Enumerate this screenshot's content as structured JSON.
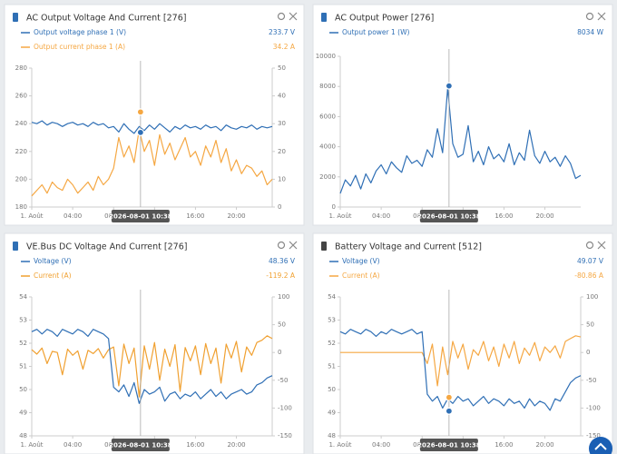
{
  "chart_data": [
    {
      "type": "line",
      "title": "AC Output Voltage And Current [276]",
      "x": [
        0,
        0.5,
        1,
        1.5,
        2,
        2.5,
        3,
        3.5,
        4,
        4.5,
        5,
        5.5,
        6,
        6.5,
        7,
        7.5,
        8,
        8.5,
        9,
        9.5,
        10,
        10.5,
        11,
        11.5,
        12,
        12.5,
        13,
        13.5,
        14,
        14.5,
        15,
        15.5,
        16,
        16.5,
        17,
        17.5,
        18,
        18.5,
        19,
        19.5,
        20,
        20.5,
        21,
        21.5,
        22,
        22.5,
        23,
        23.5
      ],
      "xlim": [
        0,
        23.5
      ],
      "xticks": [
        {
          "value": 0,
          "label": "1. Août"
        },
        {
          "value": 4,
          "label": "04:00"
        },
        {
          "value": 8,
          "label": "08:00"
        },
        {
          "value": 12,
          "label": "12:00"
        },
        {
          "value": 16,
          "label": "16:00"
        },
        {
          "value": 20,
          "label": "20:00"
        }
      ],
      "ylim": [
        180,
        280
      ],
      "yticks": [
        180,
        200,
        220,
        240,
        260,
        280
      ],
      "y2lim": [
        0,
        50
      ],
      "y2ticks": [
        0,
        10,
        20,
        30,
        40,
        50
      ],
      "hover": {
        "x": 10.63,
        "label": "2026-08-01 10:38"
      },
      "markers": true,
      "series": [
        {
          "name": "Output voltage phase 1 (V)",
          "color": "#2f6fb5",
          "hover_value": 233.7,
          "hover_label": "233.7 V",
          "values": [
            241,
            240,
            242,
            239,
            241,
            240,
            238,
            240,
            241,
            239,
            240,
            238,
            241,
            239,
            240,
            237,
            238,
            234,
            240,
            236,
            233,
            238,
            235,
            239,
            236,
            240,
            237,
            234,
            238,
            236,
            239,
            237,
            238,
            236,
            239,
            237,
            238,
            235,
            239,
            237,
            236,
            238,
            237,
            239,
            236,
            238,
            237,
            238
          ]
        },
        {
          "name": "Output current phase 1 (A)",
          "color": "#f5a742",
          "axis": "y2",
          "hover_value": 34.2,
          "hover_label": "34.2 A",
          "values": [
            4,
            6,
            8,
            5,
            9,
            7,
            6,
            10,
            8,
            5,
            7,
            9,
            6,
            11,
            8,
            10,
            14,
            25,
            18,
            22,
            16,
            28,
            20,
            24,
            15,
            26,
            19,
            23,
            17,
            21,
            25,
            18,
            20,
            15,
            22,
            18,
            24,
            16,
            21,
            13,
            17,
            12,
            15,
            14,
            11,
            13,
            8,
            10
          ]
        }
      ]
    },
    {
      "type": "line",
      "title": "AC Output Power [276]",
      "x": [
        0,
        0.5,
        1,
        1.5,
        2,
        2.5,
        3,
        3.5,
        4,
        4.5,
        5,
        5.5,
        6,
        6.5,
        7,
        7.5,
        8,
        8.5,
        9,
        9.5,
        10,
        10.5,
        11,
        11.5,
        12,
        12.5,
        13,
        13.5,
        14,
        14.5,
        15,
        15.5,
        16,
        16.5,
        17,
        17.5,
        18,
        18.5,
        19,
        19.5,
        20,
        20.5,
        21,
        21.5,
        22,
        22.5,
        23,
        23.5
      ],
      "xlim": [
        0,
        23.5
      ],
      "xticks": [
        {
          "value": 0,
          "label": "1. Août"
        },
        {
          "value": 4,
          "label": "04:00"
        },
        {
          "value": 8,
          "label": "08:00"
        },
        {
          "value": 12,
          "label": "12:00"
        },
        {
          "value": 16,
          "label": "16:00"
        },
        {
          "value": 20,
          "label": "20:00"
        }
      ],
      "ylim": [
        0,
        10000
      ],
      "yticks": [
        0,
        2000,
        4000,
        6000,
        8000,
        10000
      ],
      "hover": {
        "x": 10.63,
        "label": "2026-08-01 10:38"
      },
      "markers": true,
      "series": [
        {
          "name": "Output power 1 (W)",
          "color": "#2f6fb5",
          "hover_value": 8034,
          "hover_label": "8034 W",
          "values": [
            900,
            1800,
            1400,
            2100,
            1200,
            2200,
            1600,
            2400,
            2800,
            2200,
            3000,
            2600,
            2300,
            3400,
            2900,
            3100,
            2700,
            3800,
            3300,
            5200,
            3600,
            7900,
            4200,
            3300,
            3500,
            5400,
            3000,
            3700,
            2800,
            4000,
            3200,
            3500,
            3000,
            4200,
            2800,
            3600,
            3100,
            5100,
            3400,
            2900,
            3700,
            3000,
            3300,
            2700,
            3400,
            2900,
            1900,
            2100
          ]
        }
      ]
    },
    {
      "type": "line",
      "title": "VE.Bus DC Voltage And Current [276]",
      "x": [
        0,
        0.5,
        1,
        1.5,
        2,
        2.5,
        3,
        3.5,
        4,
        4.5,
        5,
        5.5,
        6,
        6.5,
        7,
        7.5,
        8,
        8.5,
        9,
        9.5,
        10,
        10.5,
        11,
        11.5,
        12,
        12.5,
        13,
        13.5,
        14,
        14.5,
        15,
        15.5,
        16,
        16.5,
        17,
        17.5,
        18,
        18.5,
        19,
        19.5,
        20,
        20.5,
        21,
        21.5,
        22,
        22.5,
        23,
        23.5
      ],
      "xlim": [
        0,
        23.5
      ],
      "xticks": [
        {
          "value": 0,
          "label": "1. Août"
        },
        {
          "value": 4,
          "label": "04:00"
        },
        {
          "value": 8,
          "label": "08:00"
        },
        {
          "value": 12,
          "label": "12:00"
        },
        {
          "value": 16,
          "label": "16:00"
        },
        {
          "value": 20,
          "label": "20:00"
        }
      ],
      "ylim": [
        48,
        54
      ],
      "yticks": [
        48,
        49,
        50,
        51,
        52,
        53,
        54
      ],
      "y2lim": [
        -150,
        100
      ],
      "y2ticks": [
        -150,
        -100,
        -50,
        0,
        50,
        100
      ],
      "hover": {
        "x": 10.63,
        "label": "2026-08-01 10:38"
      },
      "markers": false,
      "series": [
        {
          "name": "Voltage (V)",
          "color": "#2f6fb5",
          "hover_value": 48.36,
          "hover_label": "48.36 V",
          "values": [
            52.5,
            52.6,
            52.4,
            52.6,
            52.5,
            52.3,
            52.6,
            52.5,
            52.4,
            52.6,
            52.5,
            52.3,
            52.6,
            52.5,
            52.4,
            52.2,
            50.1,
            49.9,
            50.2,
            49.7,
            50.3,
            49.4,
            50.0,
            49.8,
            49.9,
            50.1,
            49.5,
            49.8,
            49.9,
            49.6,
            49.8,
            49.7,
            49.9,
            49.6,
            49.8,
            50.0,
            49.7,
            49.9,
            49.6,
            49.8,
            49.9,
            50.0,
            49.8,
            49.9,
            50.2,
            50.3,
            50.5,
            50.6
          ]
        },
        {
          "name": "Current (A)",
          "color": "#f0a030",
          "axis": "y2",
          "hover_value": -119.2,
          "hover_label": "-119.2 A",
          "values": [
            5,
            -3,
            8,
            -20,
            2,
            0,
            -40,
            6,
            -5,
            3,
            -30,
            4,
            -2,
            7,
            -10,
            5,
            10,
            -60,
            15,
            -20,
            8,
            -80,
            12,
            -30,
            18,
            -50,
            6,
            -25,
            14,
            -70,
            9,
            -15,
            12,
            -40,
            16,
            -20,
            8,
            -55,
            15,
            -10,
            20,
            -35,
            10,
            -5,
            18,
            22,
            30,
            25
          ]
        }
      ]
    },
    {
      "type": "line",
      "title": "Battery Voltage and Current [512]",
      "x": [
        0,
        0.5,
        1,
        1.5,
        2,
        2.5,
        3,
        3.5,
        4,
        4.5,
        5,
        5.5,
        6,
        6.5,
        7,
        7.5,
        8,
        8.5,
        9,
        9.5,
        10,
        10.5,
        11,
        11.5,
        12,
        12.5,
        13,
        13.5,
        14,
        14.5,
        15,
        15.5,
        16,
        16.5,
        17,
        17.5,
        18,
        18.5,
        19,
        19.5,
        20,
        20.5,
        21,
        21.5,
        22,
        22.5,
        23,
        23.5
      ],
      "xlim": [
        0,
        23.5
      ],
      "xticks": [
        {
          "value": 0,
          "label": "1. Août"
        },
        {
          "value": 4,
          "label": "04:00"
        },
        {
          "value": 8,
          "label": "08:00"
        },
        {
          "value": 12,
          "label": "12:00"
        },
        {
          "value": 16,
          "label": "16:00"
        },
        {
          "value": 20,
          "label": "20:00"
        }
      ],
      "ylim": [
        48,
        54
      ],
      "yticks": [
        48,
        49,
        50,
        51,
        52,
        53,
        54
      ],
      "y2lim": [
        -150,
        100
      ],
      "y2ticks": [
        -150,
        -100,
        -50,
        0,
        50,
        100
      ],
      "hover": {
        "x": 10.63,
        "label": "2026-08-01 10:38"
      },
      "markers": true,
      "series": [
        {
          "name": "Voltage (V)",
          "color": "#2f6fb5",
          "hover_value": 49.07,
          "hover_label": "49.07 V",
          "values": [
            52.5,
            52.4,
            52.6,
            52.5,
            52.4,
            52.6,
            52.5,
            52.3,
            52.5,
            52.4,
            52.6,
            52.5,
            52.4,
            52.5,
            52.6,
            52.4,
            52.5,
            49.8,
            49.5,
            49.7,
            49.2,
            49.6,
            49.4,
            49.7,
            49.5,
            49.6,
            49.3,
            49.5,
            49.7,
            49.4,
            49.6,
            49.5,
            49.3,
            49.6,
            49.4,
            49.5,
            49.2,
            49.6,
            49.3,
            49.5,
            49.4,
            49.1,
            49.6,
            49.5,
            49.9,
            50.3,
            50.5,
            50.6
          ]
        },
        {
          "name": "Current (A)",
          "color": "#f5a742",
          "axis": "y2",
          "hover_value": -80.86,
          "hover_label": "-80.86 A",
          "values": [
            0,
            0,
            0,
            0,
            0,
            0,
            0,
            0,
            0,
            0,
            0,
            0,
            0,
            0,
            0,
            0,
            0,
            -20,
            15,
            -60,
            10,
            -40,
            20,
            -10,
            15,
            -30,
            5,
            -5,
            20,
            -15,
            10,
            -25,
            15,
            -10,
            20,
            -20,
            8,
            -5,
            18,
            -15,
            10,
            0,
            12,
            -10,
            20,
            25,
            30,
            28
          ]
        }
      ]
    }
  ]
}
